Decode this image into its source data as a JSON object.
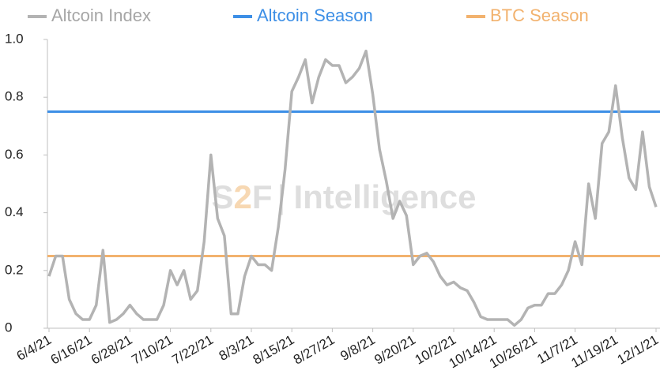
{
  "chart_data": {
    "type": "line",
    "categories": [
      "6/4/21",
      null,
      null,
      null,
      null,
      null,
      "6/16/21",
      null,
      null,
      null,
      null,
      null,
      "6/28/21",
      null,
      null,
      null,
      null,
      null,
      "7/10/21",
      null,
      null,
      null,
      null,
      null,
      "7/22/21",
      null,
      null,
      null,
      null,
      null,
      "8/3/21",
      null,
      null,
      null,
      null,
      null,
      "8/15/21",
      null,
      null,
      null,
      null,
      null,
      "8/27/21",
      null,
      null,
      null,
      null,
      null,
      "9/8/21",
      null,
      null,
      null,
      null,
      null,
      "9/20/21",
      null,
      null,
      null,
      null,
      null,
      "10/2/21",
      null,
      null,
      null,
      null,
      null,
      "10/14/21",
      null,
      null,
      null,
      null,
      null,
      "10/26/21",
      null,
      null,
      null,
      null,
      null,
      "11/7/21",
      null,
      null,
      null,
      null,
      null,
      "11/19/21",
      null,
      null,
      null,
      null,
      null,
      "12/1/21"
    ],
    "series": [
      {
        "name": "Altcoin Index",
        "color": "#b3b3b3",
        "values": [
          0.18,
          0.25,
          0.25,
          0.1,
          0.05,
          0.03,
          0.03,
          0.08,
          0.27,
          0.02,
          0.03,
          0.05,
          0.08,
          0.05,
          0.03,
          0.03,
          0.03,
          0.08,
          0.2,
          0.15,
          0.2,
          0.1,
          0.13,
          0.3,
          0.6,
          0.38,
          0.32,
          0.05,
          0.05,
          0.18,
          0.25,
          0.22,
          0.22,
          0.2,
          0.35,
          0.55,
          0.82,
          0.87,
          0.93,
          0.78,
          0.87,
          0.93,
          0.91,
          0.91,
          0.85,
          0.87,
          0.9,
          0.96,
          0.81,
          0.62,
          0.51,
          0.38,
          0.44,
          0.39,
          0.22,
          0.25,
          0.26,
          0.23,
          0.18,
          0.15,
          0.16,
          0.14,
          0.13,
          0.09,
          0.04,
          0.03,
          0.03,
          0.03,
          0.03,
          0.01,
          0.03,
          0.07,
          0.08,
          0.08,
          0.12,
          0.12,
          0.15,
          0.2,
          0.3,
          0.22,
          0.5,
          0.38,
          0.64,
          0.68,
          0.84,
          0.66,
          0.52,
          0.48,
          0.68,
          0.49,
          0.42
        ]
      }
    ],
    "reference_lines": [
      {
        "name": "Altcoin Season",
        "color": "#3d8fe6",
        "value": 0.75
      },
      {
        "name": "BTC Season",
        "color": "#f2b26e",
        "value": 0.25
      }
    ],
    "ylim": [
      0,
      1
    ],
    "yticks": [
      0,
      0.2,
      0.4,
      0.6,
      0.8,
      {
        "value": 1,
        "label": "1.0"
      }
    ],
    "watermark": {
      "brand": "S2F",
      "name": "Intelligence"
    }
  }
}
